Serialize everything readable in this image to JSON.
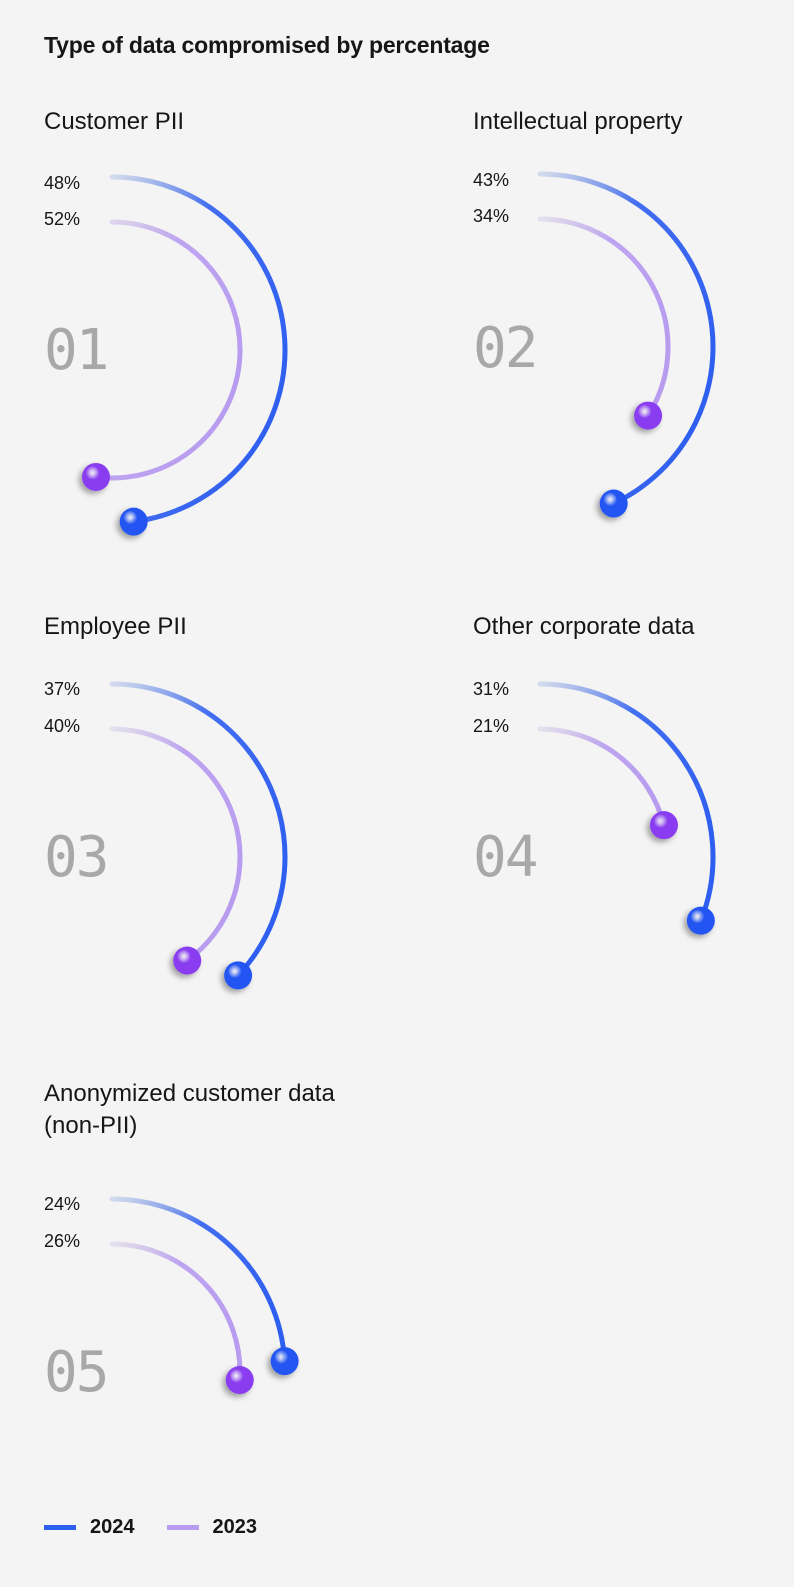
{
  "title": "Type of data compromised by percentage",
  "colors": {
    "y2024": "#2f5ff0",
    "y2023": "#b89cf0",
    "ball2024": "#2355f2",
    "ball2023": "#8a3ef0",
    "background": "#f4f4f4"
  },
  "panels": [
    {
      "index": "01",
      "label": "Customer PII",
      "v2024": "48%",
      "v2023": "52%"
    },
    {
      "index": "02",
      "label": "Intellectual property",
      "v2024": "43%",
      "v2023": "34%"
    },
    {
      "index": "03",
      "label": "Employee PII",
      "v2024": "37%",
      "v2023": "40%"
    },
    {
      "index": "04",
      "label": "Other corporate data",
      "v2024": "31%",
      "v2023": "21%"
    },
    {
      "index": "05",
      "label": "Anonymized customer data (non-PII)",
      "v2024": "24%",
      "v2023": "26%"
    }
  ],
  "legend": [
    {
      "label": "2024"
    },
    {
      "label": "2023"
    }
  ],
  "chart_data": {
    "type": "radial-bar",
    "title": "Type of data compromised by percentage",
    "categories": [
      "Customer PII",
      "Intellectual property",
      "Employee PII",
      "Other corporate data",
      "Anonymized customer data (non-PII)"
    ],
    "series": [
      {
        "name": "2024",
        "values": [
          48,
          43,
          37,
          31,
          24
        ],
        "color": "#2f5ff0"
      },
      {
        "name": "2023",
        "values": [
          52,
          34,
          40,
          21,
          26
        ],
        "color": "#b89cf0"
      }
    ],
    "unit": "%",
    "legend_position": "bottom-left"
  }
}
